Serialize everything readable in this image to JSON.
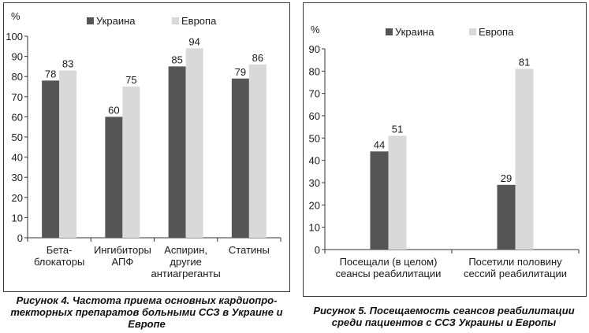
{
  "chart_data": [
    {
      "type": "bar",
      "unit_label": "%",
      "categories": [
        [
          "Бета-",
          "блокаторы"
        ],
        [
          "Ингибиторы",
          "АПФ"
        ],
        [
          "Аспирин,",
          "другие",
          "антиагреганты"
        ],
        [
          "Статины"
        ]
      ],
      "series": [
        {
          "name": "Украина",
          "color": "#555555",
          "values": [
            78,
            60,
            85,
            79
          ]
        },
        {
          "name": "Европа",
          "color": "#d9d9d9",
          "values": [
            83,
            75,
            94,
            86
          ]
        }
      ],
      "ylim": [
        0,
        100
      ],
      "yticks": [
        0,
        10,
        20,
        30,
        40,
        50,
        60,
        70,
        80,
        90,
        100
      ],
      "legend_position": "top",
      "grid": false,
      "caption": [
        "Рисунок 4. Частота приема основных кардиопро-",
        "текторных препаратов больными ССЗ в Украине и",
        "Европе"
      ]
    },
    {
      "type": "bar",
      "unit_label": "%",
      "categories": [
        [
          "Посещали (в целом)",
          "сеансы реабилитации"
        ],
        [
          "Посетили половину",
          "сессий реабилитации"
        ]
      ],
      "series": [
        {
          "name": "Украина",
          "color": "#555555",
          "values": [
            44,
            29
          ]
        },
        {
          "name": "Европа",
          "color": "#d9d9d9",
          "values": [
            51,
            81
          ]
        }
      ],
      "ylim": [
        0,
        90
      ],
      "yticks": [
        0,
        10,
        20,
        30,
        40,
        50,
        60,
        70,
        80,
        90
      ],
      "legend_position": "top",
      "grid": false,
      "caption": [
        "Рисунок 5. Посещаемость сеансов реабилитации",
        "среди пациентов с ССЗ Украины и Европы"
      ]
    }
  ]
}
